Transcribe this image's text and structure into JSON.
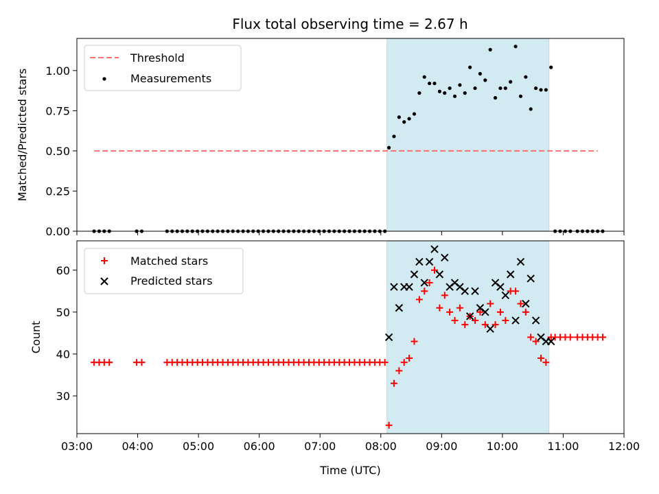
{
  "figure": {
    "title": "Flux total observing time = 2.67 h"
  },
  "chart_data": [
    {
      "type": "scatter",
      "ylabel": "Matched/Predicted stars",
      "xlim": [
        "03:00",
        "12:00"
      ],
      "ylim": [
        0,
        1.2
      ],
      "yticks": [
        "0.00",
        "0.25",
        "0.50",
        "0.75",
        "1.00"
      ],
      "shaded_span": {
        "start": "08:06",
        "end": "10:46",
        "color": "#add8e6"
      },
      "threshold": {
        "name": "Threshold",
        "value": 0.5,
        "x_start": "03:17",
        "x_end": "11:34",
        "color": "#ff6f6f"
      },
      "legend": {
        "position": "top-left",
        "entries": [
          "Threshold",
          "Measurements"
        ]
      },
      "series": [
        {
          "name": "Measurements",
          "color": "#000000",
          "points": [
            [
              "03:17",
              0
            ],
            [
              "03:22",
              0
            ],
            [
              "03:27",
              0
            ],
            [
              "03:32",
              0
            ],
            [
              "03:59",
              0
            ],
            [
              "04:04",
              0
            ],
            [
              "04:29",
              0
            ],
            [
              "04:34",
              0
            ],
            [
              "04:39",
              0
            ],
            [
              "04:44",
              0
            ],
            [
              "04:49",
              0
            ],
            [
              "04:54",
              0
            ],
            [
              "04:59",
              0
            ],
            [
              "05:04",
              0
            ],
            [
              "05:09",
              0
            ],
            [
              "05:14",
              0
            ],
            [
              "05:19",
              0
            ],
            [
              "05:24",
              0
            ],
            [
              "05:29",
              0
            ],
            [
              "05:34",
              0
            ],
            [
              "05:39",
              0
            ],
            [
              "05:44",
              0
            ],
            [
              "05:49",
              0
            ],
            [
              "05:54",
              0
            ],
            [
              "05:59",
              0
            ],
            [
              "06:04",
              0
            ],
            [
              "06:09",
              0
            ],
            [
              "06:14",
              0
            ],
            [
              "06:19",
              0
            ],
            [
              "06:24",
              0
            ],
            [
              "06:29",
              0
            ],
            [
              "06:34",
              0
            ],
            [
              "06:39",
              0
            ],
            [
              "06:44",
              0
            ],
            [
              "06:49",
              0
            ],
            [
              "06:54",
              0
            ],
            [
              "06:59",
              0
            ],
            [
              "07:04",
              0
            ],
            [
              "07:09",
              0
            ],
            [
              "07:14",
              0
            ],
            [
              "07:19",
              0
            ],
            [
              "07:24",
              0
            ],
            [
              "07:29",
              0
            ],
            [
              "07:34",
              0
            ],
            [
              "07:39",
              0
            ],
            [
              "07:44",
              0
            ],
            [
              "07:49",
              0
            ],
            [
              "07:54",
              0
            ],
            [
              "07:59",
              0
            ],
            [
              "08:04",
              0
            ],
            [
              "08:08",
              0.52
            ],
            [
              "08:13",
              0.59
            ],
            [
              "08:18",
              0.71
            ],
            [
              "08:23",
              0.68
            ],
            [
              "08:28",
              0.7
            ],
            [
              "08:33",
              0.73
            ],
            [
              "08:38",
              0.86
            ],
            [
              "08:43",
              0.96
            ],
            [
              "08:48",
              0.92
            ],
            [
              "08:53",
              0.92
            ],
            [
              "08:58",
              0.87
            ],
            [
              "09:03",
              0.86
            ],
            [
              "09:08",
              0.89
            ],
            [
              "09:13",
              0.84
            ],
            [
              "09:18",
              0.91
            ],
            [
              "09:23",
              0.86
            ],
            [
              "09:28",
              1.02
            ],
            [
              "09:33",
              0.89
            ],
            [
              "09:38",
              0.98
            ],
            [
              "09:43",
              0.94
            ],
            [
              "09:48",
              1.13
            ],
            [
              "09:53",
              0.83
            ],
            [
              "09:58",
              0.89
            ],
            [
              "10:03",
              0.89
            ],
            [
              "10:08",
              0.93
            ],
            [
              "10:13",
              1.15
            ],
            [
              "10:18",
              0.84
            ],
            [
              "10:23",
              0.96
            ],
            [
              "10:28",
              0.76
            ],
            [
              "10:33",
              0.89
            ],
            [
              "10:38",
              0.88
            ],
            [
              "10:43",
              0.88
            ],
            [
              "10:48",
              1.02
            ],
            [
              "10:52",
              0
            ],
            [
              "10:57",
              0
            ],
            [
              "11:02",
              0
            ],
            [
              "11:07",
              0
            ],
            [
              "11:14",
              0
            ],
            [
              "11:19",
              0
            ],
            [
              "11:24",
              0
            ],
            [
              "11:29",
              0
            ],
            [
              "11:34",
              0
            ],
            [
              "11:39",
              0
            ]
          ]
        }
      ]
    },
    {
      "type": "scatter",
      "xlabel": "Time (UTC)",
      "ylabel": "Count",
      "xlim": [
        "03:00",
        "12:00"
      ],
      "ylim": [
        21,
        67
      ],
      "xticks": [
        "03:00",
        "04:00",
        "05:00",
        "06:00",
        "07:00",
        "08:00",
        "09:00",
        "10:00",
        "11:00",
        "12:00"
      ],
      "yticks": [
        "30",
        "40",
        "50",
        "60"
      ],
      "shaded_span": {
        "start": "08:06",
        "end": "10:46",
        "color": "#add8e6"
      },
      "legend": {
        "position": "top-left",
        "entries": [
          "Matched stars",
          "Predicted stars"
        ]
      },
      "series": [
        {
          "name": "Matched stars",
          "marker": "+",
          "color": "#ff0000",
          "points": [
            [
              "03:17",
              38
            ],
            [
              "03:22",
              38
            ],
            [
              "03:27",
              38
            ],
            [
              "03:32",
              38
            ],
            [
              "03:59",
              38
            ],
            [
              "04:04",
              38
            ],
            [
              "04:29",
              38
            ],
            [
              "04:34",
              38
            ],
            [
              "04:39",
              38
            ],
            [
              "04:44",
              38
            ],
            [
              "04:49",
              38
            ],
            [
              "04:54",
              38
            ],
            [
              "04:59",
              38
            ],
            [
              "05:04",
              38
            ],
            [
              "05:09",
              38
            ],
            [
              "05:14",
              38
            ],
            [
              "05:19",
              38
            ],
            [
              "05:24",
              38
            ],
            [
              "05:29",
              38
            ],
            [
              "05:34",
              38
            ],
            [
              "05:39",
              38
            ],
            [
              "05:44",
              38
            ],
            [
              "05:49",
              38
            ],
            [
              "05:54",
              38
            ],
            [
              "05:59",
              38
            ],
            [
              "06:04",
              38
            ],
            [
              "06:09",
              38
            ],
            [
              "06:14",
              38
            ],
            [
              "06:19",
              38
            ],
            [
              "06:24",
              38
            ],
            [
              "06:29",
              38
            ],
            [
              "06:34",
              38
            ],
            [
              "06:39",
              38
            ],
            [
              "06:44",
              38
            ],
            [
              "06:49",
              38
            ],
            [
              "06:54",
              38
            ],
            [
              "06:59",
              38
            ],
            [
              "07:04",
              38
            ],
            [
              "07:09",
              38
            ],
            [
              "07:14",
              38
            ],
            [
              "07:19",
              38
            ],
            [
              "07:24",
              38
            ],
            [
              "07:29",
              38
            ],
            [
              "07:34",
              38
            ],
            [
              "07:39",
              38
            ],
            [
              "07:44",
              38
            ],
            [
              "07:49",
              38
            ],
            [
              "07:54",
              38
            ],
            [
              "07:59",
              38
            ],
            [
              "08:04",
              38
            ],
            [
              "08:08",
              23
            ],
            [
              "08:13",
              33
            ],
            [
              "08:18",
              36
            ],
            [
              "08:23",
              38
            ],
            [
              "08:28",
              39
            ],
            [
              "08:33",
              43
            ],
            [
              "08:38",
              53
            ],
            [
              "08:43",
              55
            ],
            [
              "08:48",
              57
            ],
            [
              "08:53",
              60
            ],
            [
              "08:58",
              51
            ],
            [
              "09:03",
              54
            ],
            [
              "09:08",
              50
            ],
            [
              "09:13",
              48
            ],
            [
              "09:18",
              51
            ],
            [
              "09:23",
              47
            ],
            [
              "09:28",
              49
            ],
            [
              "09:33",
              48
            ],
            [
              "09:38",
              50
            ],
            [
              "09:43",
              47
            ],
            [
              "09:48",
              52
            ],
            [
              "09:53",
              47
            ],
            [
              "09:58",
              50
            ],
            [
              "10:03",
              48
            ],
            [
              "10:08",
              55
            ],
            [
              "10:13",
              55
            ],
            [
              "10:18",
              52
            ],
            [
              "10:23",
              50
            ],
            [
              "10:28",
              44
            ],
            [
              "10:33",
              43
            ],
            [
              "10:38",
              39
            ],
            [
              "10:43",
              38
            ],
            [
              "10:48",
              44
            ],
            [
              "10:52",
              44
            ],
            [
              "10:57",
              44
            ],
            [
              "11:02",
              44
            ],
            [
              "11:07",
              44
            ],
            [
              "11:14",
              44
            ],
            [
              "11:19",
              44
            ],
            [
              "11:24",
              44
            ],
            [
              "11:29",
              44
            ],
            [
              "11:34",
              44
            ],
            [
              "11:39",
              44
            ]
          ]
        },
        {
          "name": "Predicted stars",
          "marker": "x",
          "color": "#000000",
          "points": [
            [
              "08:08",
              44
            ],
            [
              "08:13",
              56
            ],
            [
              "08:18",
              51
            ],
            [
              "08:23",
              56
            ],
            [
              "08:28",
              56
            ],
            [
              "08:33",
              59
            ],
            [
              "08:38",
              62
            ],
            [
              "08:43",
              57
            ],
            [
              "08:48",
              62
            ],
            [
              "08:53",
              65
            ],
            [
              "08:58",
              59
            ],
            [
              "09:03",
              63
            ],
            [
              "09:08",
              56
            ],
            [
              "09:13",
              57
            ],
            [
              "09:18",
              56
            ],
            [
              "09:23",
              55
            ],
            [
              "09:28",
              49
            ],
            [
              "09:33",
              55
            ],
            [
              "09:38",
              51
            ],
            [
              "09:43",
              50
            ],
            [
              "09:48",
              46
            ],
            [
              "09:53",
              57
            ],
            [
              "09:58",
              56
            ],
            [
              "10:03",
              54
            ],
            [
              "10:08",
              59
            ],
            [
              "10:13",
              48
            ],
            [
              "10:18",
              62
            ],
            [
              "10:23",
              52
            ],
            [
              "10:28",
              58
            ],
            [
              "10:33",
              48
            ],
            [
              "10:38",
              44
            ],
            [
              "10:43",
              43
            ],
            [
              "10:48",
              43
            ]
          ]
        }
      ]
    }
  ]
}
